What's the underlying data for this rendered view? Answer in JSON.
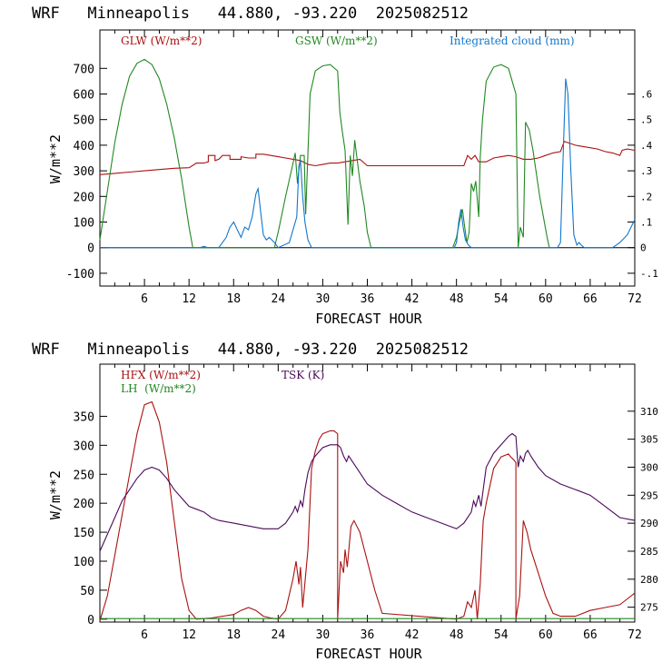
{
  "chart_data": [
    {
      "type": "line",
      "title": "WRF   Minneapolis   44.880, -93.220  2025082512",
      "xlabel": "FORECAST HOUR",
      "ylabel": "W/m**2",
      "xlim": [
        0,
        72
      ],
      "ylim": [
        -150,
        850
      ],
      "x_ticks": [
        6,
        12,
        18,
        24,
        30,
        36,
        42,
        48,
        54,
        60,
        66,
        72
      ],
      "y_ticks": [
        -100,
        0,
        100,
        200,
        300,
        400,
        500,
        600,
        700
      ],
      "zero_line": true,
      "y2lim": [
        -0.15,
        0.85
      ],
      "y2_ticks": [
        -0.1,
        0,
        0.1,
        0.2,
        0.3,
        0.4,
        0.5,
        0.6
      ],
      "y2_tick_labels": [
        "-.1",
        "0",
        ".1",
        ".2",
        ".3",
        ".4",
        ".5",
        ".6"
      ],
      "series": [
        {
          "name": "GLW (W/m**2)",
          "color": "#aa1111",
          "axis": "left",
          "x": [
            0,
            2,
            4,
            6,
            8,
            10,
            12,
            13,
            14,
            14.6,
            14.6,
            15.5,
            15.5,
            16,
            16.5,
            17.5,
            17.5,
            19,
            19,
            20,
            21,
            21,
            22,
            23,
            24,
            25,
            26,
            27,
            28,
            29,
            30,
            31,
            32,
            33,
            34,
            35,
            36,
            38,
            40,
            42,
            44,
            46,
            48,
            49,
            49.5,
            50,
            50.5,
            51,
            52,
            53,
            54,
            55,
            56,
            57,
            58,
            59,
            60,
            61,
            62,
            62.5,
            63,
            64,
            65,
            66,
            67,
            68,
            69,
            70,
            70.3,
            71,
            72
          ],
          "values": [
            285,
            290,
            295,
            300,
            305,
            310,
            312,
            330,
            330,
            335,
            360,
            360,
            340,
            345,
            360,
            360,
            345,
            345,
            355,
            350,
            350,
            365,
            365,
            360,
            355,
            350,
            345,
            340,
            325,
            320,
            325,
            330,
            330,
            335,
            340,
            345,
            320,
            320,
            320,
            320,
            320,
            320,
            320,
            320,
            360,
            345,
            360,
            335,
            335,
            350,
            355,
            360,
            355,
            345,
            345,
            350,
            360,
            370,
            375,
            415,
            410,
            400,
            395,
            390,
            385,
            375,
            370,
            360,
            380,
            385,
            380
          ]
        },
        {
          "name": "GSW (W/m**2)",
          "color": "#228822",
          "axis": "left",
          "x": [
            0,
            1,
            2,
            3,
            4,
            5,
            6,
            7,
            8,
            9,
            10,
            11,
            12,
            12.5,
            23.5,
            24,
            25,
            26,
            26.3,
            26.6,
            27,
            27.5,
            27.7,
            28.3,
            28.6,
            29,
            30,
            31,
            32,
            32.3,
            32.6,
            33,
            33.4,
            33.7,
            34,
            34.3,
            35,
            35.6,
            36,
            36.5,
            47.5,
            48,
            48.4,
            48.8,
            49.1,
            49.4,
            49.7,
            50,
            50.3,
            50.6,
            51,
            51.2,
            51.5,
            52,
            53,
            54,
            55,
            56,
            56.3,
            56.6,
            57,
            57.3,
            57.8,
            58.3,
            58.7,
            59.2,
            59.7,
            60.2,
            60.5
          ],
          "values": [
            30,
            220,
            410,
            560,
            670,
            720,
            735,
            715,
            660,
            560,
            430,
            270,
            80,
            0,
            0,
            60,
            200,
            330,
            370,
            250,
            360,
            360,
            130,
            600,
            640,
            690,
            710,
            715,
            690,
            530,
            460,
            380,
            90,
            360,
            280,
            420,
            260,
            160,
            60,
            0,
            0,
            40,
            100,
            150,
            80,
            20,
            60,
            250,
            220,
            260,
            120,
            350,
            500,
            650,
            705,
            715,
            700,
            600,
            0,
            80,
            40,
            490,
            460,
            380,
            300,
            200,
            120,
            40,
            0
          ]
        },
        {
          "name": "Integrated cloud (mm)",
          "color": "#1177cc",
          "axis": "right",
          "x": [
            0,
            13.5,
            14,
            14.5,
            16,
            17,
            17.5,
            18,
            18.5,
            19,
            19.5,
            20,
            20.5,
            21,
            21.3,
            21.6,
            22,
            22.4,
            22.8,
            23.5,
            24,
            25.5,
            26.5,
            26.8,
            27,
            27.3,
            27.6,
            28,
            28.5,
            47.7,
            48,
            48.3,
            48.6,
            48.9,
            49.2,
            49.6,
            50,
            61.6,
            62,
            62.4,
            62.7,
            63,
            63.4,
            63.8,
            64.2,
            64.5,
            64.8,
            65.2,
            69,
            70,
            71,
            72
          ],
          "values": [
            0,
            0,
            0.005,
            0,
            0,
            0.04,
            0.08,
            0.1,
            0.07,
            0.04,
            0.08,
            0.07,
            0.12,
            0.21,
            0.23,
            0.15,
            0.05,
            0.03,
            0.04,
            0.02,
            0,
            0.02,
            0.12,
            0.32,
            0.34,
            0.2,
            0.1,
            0.03,
            0,
            0,
            0.02,
            0.1,
            0.15,
            0.08,
            0.03,
            0.01,
            0,
            0,
            0.02,
            0.4,
            0.66,
            0.6,
            0.3,
            0.05,
            0.01,
            0.02,
            0.01,
            0,
            0,
            0.02,
            0.05,
            0.11
          ]
        }
      ]
    },
    {
      "type": "line",
      "title": "WRF   Minneapolis   44.880, -93.220  2025082512",
      "xlabel": "FORECAST HOUR",
      "ylabel": "W/m**2",
      "xlim": [
        0,
        72
      ],
      "ylim": [
        -5,
        440
      ],
      "x_ticks": [
        6,
        12,
        18,
        24,
        30,
        36,
        42,
        48,
        54,
        60,
        66,
        72
      ],
      "y_ticks": [
        0,
        50,
        100,
        150,
        200,
        250,
        300,
        350
      ],
      "zero_line": false,
      "y2lim": [
        272.35,
        318.4
      ],
      "y2_ticks": [
        275,
        280,
        285,
        290,
        295,
        300,
        305,
        310
      ],
      "y2_tick_labels": [
        "275",
        "280",
        "285",
        "290",
        "295",
        "300",
        "305",
        "310"
      ],
      "series": [
        {
          "name": "HFX (W/m**2)",
          "color": "#aa1111",
          "axis": "left",
          "x": [
            0,
            1,
            2,
            3,
            4,
            5,
            6,
            7,
            8,
            9,
            10,
            11,
            12,
            13,
            15,
            18,
            19,
            20,
            21,
            22,
            23,
            24,
            25,
            26,
            26.4,
            26.8,
            27,
            27.3,
            28,
            28.5,
            29,
            29.5,
            30,
            31,
            31.5,
            32,
            32,
            32.4,
            32.8,
            33,
            33.3,
            33.8,
            34.2,
            35,
            36,
            37,
            38,
            48,
            49,
            49.5,
            50,
            50.5,
            50.8,
            51.2,
            51.6,
            52,
            53,
            54,
            55,
            55.3,
            55.7,
            56,
            56,
            56.5,
            57,
            57.5,
            58,
            59,
            60,
            61,
            62,
            64,
            66,
            68,
            70,
            71,
            72
          ],
          "values": [
            -3,
            40,
            110,
            180,
            250,
            320,
            370,
            375,
            340,
            270,
            170,
            70,
            15,
            0,
            2,
            8,
            15,
            20,
            15,
            5,
            2,
            0,
            15,
            70,
            100,
            60,
            90,
            20,
            120,
            260,
            290,
            310,
            320,
            325,
            325,
            320,
            0,
            100,
            80,
            120,
            90,
            160,
            170,
            150,
            100,
            50,
            10,
            0,
            5,
            30,
            20,
            50,
            0,
            60,
            170,
            200,
            260,
            280,
            285,
            280,
            275,
            270,
            0,
            40,
            170,
            150,
            120,
            80,
            40,
            10,
            5,
            5,
            15,
            20,
            25,
            35,
            45
          ]
        },
        {
          "name": "LH  (W/m**2)",
          "color": "#228822",
          "axis": "left",
          "x": [
            0,
            12,
            24,
            36,
            48,
            54,
            60,
            72
          ],
          "values": [
            1,
            1,
            1,
            1,
            1,
            1,
            1,
            1
          ]
        },
        {
          "name": "TSK (K)",
          "color": "#4a0a5a",
          "axis": "right",
          "x": [
            0,
            1,
            2,
            3,
            4,
            5,
            6,
            7,
            8,
            9,
            10,
            11,
            12,
            13,
            14,
            15,
            16,
            18,
            20,
            22,
            24,
            25,
            26,
            26.3,
            26.6,
            27,
            27.3,
            27.6,
            28,
            28.5,
            29,
            30,
            31,
            32,
            32.4,
            32.8,
            33.2,
            33.5,
            34,
            35,
            36,
            38,
            40,
            42,
            44,
            46,
            48,
            49,
            50,
            50.3,
            50.6,
            51,
            51.3,
            51.7,
            52,
            53,
            54,
            55,
            55.5,
            56,
            56.3,
            56.6,
            57,
            57.3,
            57.6,
            58,
            58.5,
            59,
            60,
            62,
            64,
            66,
            68,
            70,
            72
          ],
          "values": [
            285,
            288,
            291,
            294,
            296,
            298,
            299.5,
            300,
            299.5,
            298,
            296,
            294.5,
            293,
            292.5,
            292,
            291,
            290.5,
            290,
            289.5,
            289,
            289,
            290,
            292,
            293,
            292,
            294,
            293,
            296,
            299,
            301,
            302,
            303.5,
            304,
            304,
            303.5,
            302,
            301,
            302,
            301,
            299,
            297,
            295,
            293.5,
            292,
            291,
            290,
            289,
            290,
            292,
            294,
            293,
            295,
            293,
            297,
            300,
            302.5,
            304,
            305.5,
            306,
            305.5,
            300,
            302,
            301,
            302.5,
            303,
            302,
            301,
            300,
            298.5,
            297,
            296,
            295,
            293,
            291,
            290.5
          ]
        }
      ]
    }
  ]
}
